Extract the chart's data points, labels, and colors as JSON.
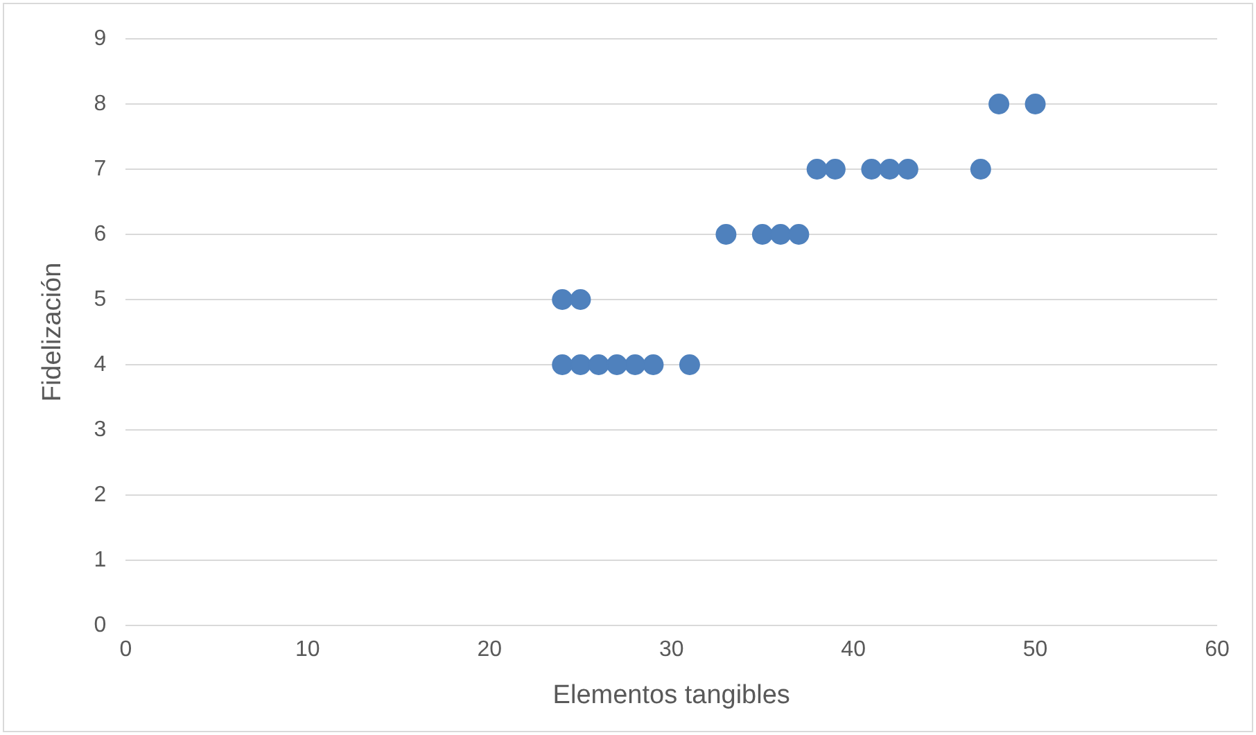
{
  "chart_data": {
    "type": "scatter",
    "xlabel": "Elementos tangibles",
    "ylabel": "Fidelización",
    "x": [
      24,
      25,
      26,
      27,
      28,
      29,
      31,
      24,
      25,
      33,
      35,
      36,
      37,
      38,
      39,
      41,
      42,
      43,
      47,
      48,
      50
    ],
    "values": [
      4,
      4,
      4,
      4,
      4,
      4,
      4,
      5,
      5,
      6,
      6,
      6,
      6,
      7,
      7,
      7,
      7,
      7,
      7,
      8,
      8
    ],
    "color": "#4f81bd",
    "marker": "circle",
    "xlim": [
      0,
      60
    ],
    "xticks": [
      0,
      10,
      20,
      30,
      40,
      50,
      60
    ],
    "ylim": [
      0,
      9
    ],
    "yticks": [
      0,
      1,
      2,
      3,
      4,
      5,
      6,
      7,
      8,
      9
    ],
    "grid": "y",
    "legend": false
  }
}
